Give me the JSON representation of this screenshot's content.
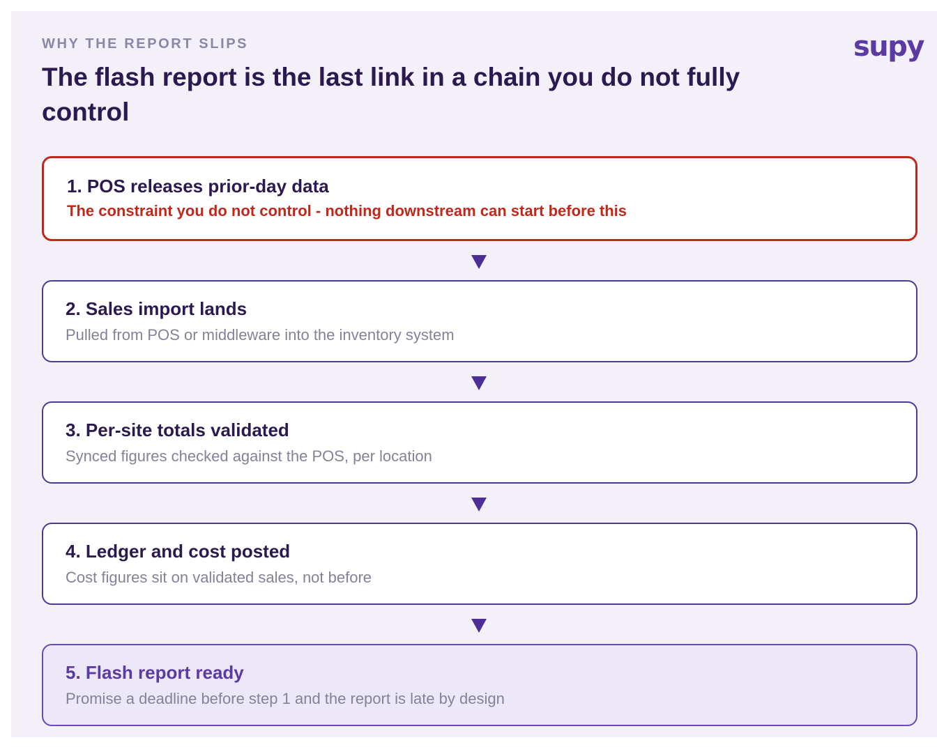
{
  "header": {
    "eyebrow": "WHY THE REPORT SLIPS",
    "title": "The flash report is the last link in a chain you do not fully control",
    "logo": "supy"
  },
  "steps": [
    {
      "title": "1. POS releases prior-day data",
      "subtitle": "The constraint you do not control - nothing downstream can start before this",
      "status": "constraint"
    },
    {
      "title": "2. Sales import lands",
      "subtitle": "Pulled from POS or middleware into the inventory system"
    },
    {
      "title": "3. Per-site totals validated",
      "subtitle": "Synced figures checked against the POS, per location"
    },
    {
      "title": "4. Ledger and cost posted",
      "subtitle": "Cost figures sit on validated sales, not before"
    },
    {
      "title": "5. Flash report ready",
      "subtitle": "Promise a deadline before step 1 and the report is late by design",
      "status": "final"
    }
  ],
  "colors": {
    "background": "#f3f0fa",
    "title": "#2b1a4f",
    "accent": "#5b3aa3",
    "constraint": "#c0281c",
    "muted": "#858199",
    "arrow": "#4b2f94"
  }
}
